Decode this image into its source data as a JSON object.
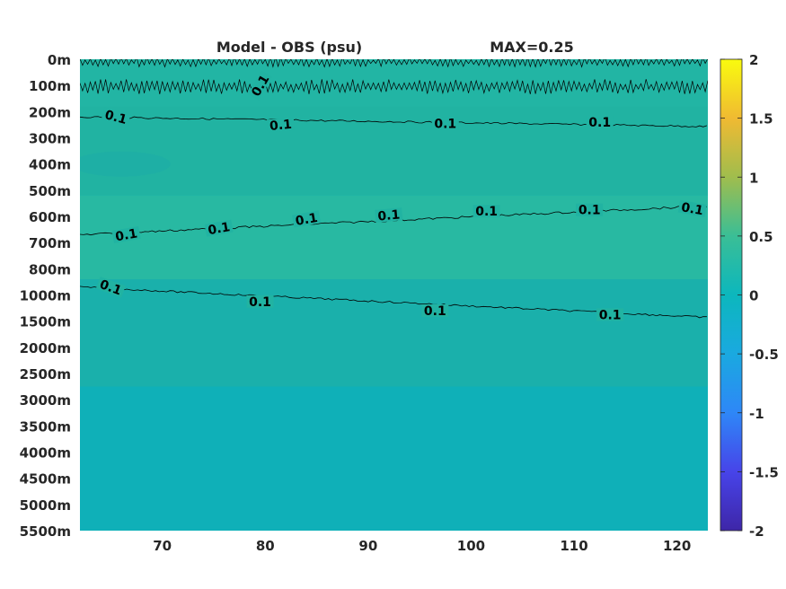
{
  "chart_data": {
    "type": "heatmap",
    "title_left": "Model - OBS (psu)",
    "title_right": "MAX=0.25",
    "x_ticks": [
      70,
      80,
      90,
      100,
      110,
      120
    ],
    "xlim": [
      62,
      123
    ],
    "y_ticks": [
      "0m",
      "100m",
      "200m",
      "300m",
      "400m",
      "500m",
      "600m",
      "700m",
      "800m",
      "1000m",
      "1500m",
      "2000m",
      "2500m",
      "3000m",
      "3500m",
      "4000m",
      "4500m",
      "5000m",
      "5500m"
    ],
    "colorbar": {
      "ticks": [
        "2",
        "1.5",
        "1",
        "0.5",
        "0",
        "-0.5",
        "-1",
        "-1.5",
        "-2"
      ],
      "range": [
        -2,
        2
      ],
      "colormap": "parula"
    },
    "colors": {
      "bg_top_band": "#22b5a4",
      "bg_upper": "#21b3a2",
      "bg_mid": "#28b9a2",
      "bg_low": "#1ab0ab",
      "bg_deep": "#0fb0b8"
    },
    "contour_levels": [
      0.1
    ],
    "contour_labels": [
      {
        "text": "0.1",
        "x": 79.5,
        "depth_idx": 1.0,
        "angle": -60
      },
      {
        "text": "0.1",
        "x": 65.5,
        "depth_idx": 2.2,
        "angle": 15
      },
      {
        "text": "0.1",
        "x": 81.5,
        "depth_idx": 2.5,
        "angle": -5
      },
      {
        "text": "0.1",
        "x": 97.5,
        "depth_idx": 2.45,
        "angle": 0
      },
      {
        "text": "0.1",
        "x": 112.5,
        "depth_idx": 2.4,
        "angle": 0
      },
      {
        "text": "0.1",
        "x": 66.5,
        "depth_idx": 6.7,
        "angle": -10
      },
      {
        "text": "0.1",
        "x": 75.5,
        "depth_idx": 6.45,
        "angle": -10
      },
      {
        "text": "0.1",
        "x": 84.0,
        "depth_idx": 6.1,
        "angle": -10
      },
      {
        "text": "0.1",
        "x": 92.0,
        "depth_idx": 5.95,
        "angle": -5
      },
      {
        "text": "0.1",
        "x": 101.5,
        "depth_idx": 5.8,
        "angle": 0
      },
      {
        "text": "0.1",
        "x": 111.5,
        "depth_idx": 5.75,
        "angle": 0
      },
      {
        "text": "0.1",
        "x": 121.5,
        "depth_idx": 5.7,
        "angle": 10
      },
      {
        "text": "0.1",
        "x": 65.0,
        "depth_idx": 8.7,
        "angle": 20
      },
      {
        "text": "0.1",
        "x": 79.5,
        "depth_idx": 9.25,
        "angle": 0
      },
      {
        "text": "0.1",
        "x": 96.5,
        "depth_idx": 9.6,
        "angle": 0
      },
      {
        "text": "0.1",
        "x": 113.5,
        "depth_idx": 9.75,
        "angle": 0
      }
    ]
  }
}
